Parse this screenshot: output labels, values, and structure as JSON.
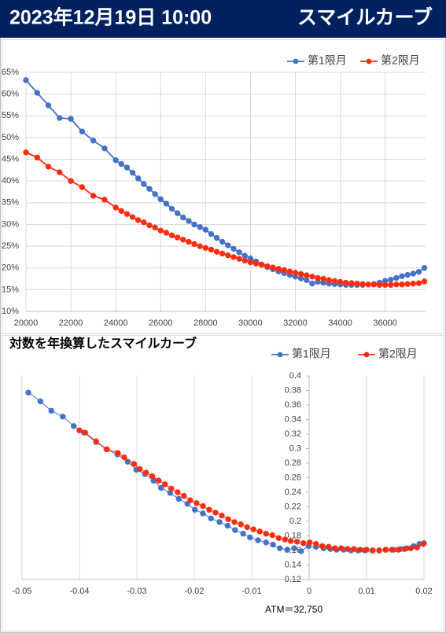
{
  "header": {
    "date": "2023年12月19日 10:00",
    "title": "スマイルカーブ"
  },
  "chart_data": [
    {
      "type": "line",
      "legend": "top-right",
      "grid": [
        "x",
        "y"
      ],
      "x": [
        20000,
        20500,
        21000,
        21500,
        22000,
        22500,
        23000,
        23500,
        24000,
        24250,
        24500,
        24750,
        25000,
        25250,
        25500,
        25750,
        26000,
        26250,
        26500,
        26750,
        27000,
        27250,
        27500,
        27750,
        28000,
        28250,
        28500,
        28750,
        29000,
        29250,
        29500,
        29750,
        30000,
        30250,
        30500,
        30750,
        31000,
        31250,
        31500,
        31750,
        32000,
        32250,
        32500,
        32750,
        33000,
        33250,
        33500,
        33750,
        34000,
        34250,
        34500,
        34750,
        35000,
        35250,
        35500,
        35750,
        36000,
        36250,
        36500,
        36750,
        37000,
        37250,
        37500,
        37750
      ],
      "xlim": [
        20000,
        37800
      ],
      "xticks": [
        20000,
        22000,
        24000,
        26000,
        28000,
        30000,
        32000,
        34000,
        36000
      ],
      "ylim": [
        10,
        65
      ],
      "yticks": [
        {
          "value": 10,
          "label": "10%"
        },
        {
          "value": 15,
          "label": "15%"
        },
        {
          "value": 20,
          "label": "20%"
        },
        {
          "value": 25,
          "label": "25%"
        },
        {
          "value": 30,
          "label": "30%"
        },
        {
          "value": 35,
          "label": "35%"
        },
        {
          "value": 40,
          "label": "40%"
        },
        {
          "value": 45,
          "label": "45%"
        },
        {
          "value": 50,
          "label": "50%"
        },
        {
          "value": 55,
          "label": "55%"
        },
        {
          "value": 60,
          "label": "60%"
        },
        {
          "value": 65,
          "label": "65%"
        }
      ],
      "series": [
        {
          "name": "第1限月",
          "color": "#4472c4",
          "values": [
            63.2,
            60.3,
            57.4,
            54.5,
            54.3,
            51.4,
            49.3,
            47.5,
            44.8,
            43.9,
            43.1,
            41.9,
            40.6,
            39.3,
            38.2,
            37.0,
            35.8,
            34.8,
            33.6,
            32.6,
            31.6,
            30.8,
            30.0,
            29.4,
            28.8,
            27.8,
            26.9,
            26.0,
            25.2,
            24.4,
            23.6,
            22.8,
            22.2,
            21.5,
            20.8,
            20.2,
            19.7,
            19.2,
            18.8,
            18.4,
            18.0,
            17.6,
            17.2,
            16.4,
            16.8,
            16.6,
            16.4,
            16.3,
            16.2,
            16.1,
            16.1,
            16.1,
            16.1,
            16.2,
            16.3,
            16.6,
            17.0,
            17.3,
            17.7,
            18.1,
            18.4,
            18.7,
            19.1,
            20.0
          ]
        },
        {
          "name": "第2限月",
          "color": "#ff2d10",
          "values": [
            46.6,
            45.4,
            43.3,
            42.0,
            40.0,
            38.6,
            36.6,
            35.7,
            33.9,
            33.1,
            32.4,
            31.7,
            31.0,
            30.5,
            29.8,
            29.3,
            28.6,
            28.1,
            27.5,
            27.0,
            26.5,
            26.0,
            25.5,
            25.0,
            24.6,
            24.2,
            23.7,
            23.3,
            22.9,
            22.5,
            22.1,
            21.7,
            21.3,
            21.0,
            20.7,
            20.4,
            20.1,
            19.8,
            19.5,
            19.2,
            18.9,
            18.6,
            18.3,
            18.0,
            17.7,
            17.5,
            17.2,
            17.0,
            16.8,
            16.6,
            16.5,
            16.4,
            16.3,
            16.2,
            16.2,
            16.1,
            16.1,
            16.1,
            16.2,
            16.2,
            16.3,
            16.4,
            16.5,
            16.9
          ]
        }
      ]
    },
    {
      "type": "scatter",
      "title": "対数を年換算したスマイルカーブ",
      "legend": "top-right",
      "grid": [
        "x"
      ],
      "annotation": "ATM＝32,750",
      "y_axis_crossing": 0,
      "xlim": [
        -0.05,
        0.02
      ],
      "xticks": [
        -0.05,
        -0.04,
        -0.03,
        -0.02,
        -0.01,
        0,
        0.01,
        0.02
      ],
      "ylim": [
        0.12,
        0.4
      ],
      "yticks": [
        0.12,
        0.14,
        0.16,
        0.18,
        0.2,
        0.22,
        0.24,
        0.26,
        0.28,
        0.3,
        0.32,
        0.34,
        0.36,
        0.38,
        0.4
      ],
      "series": [
        {
          "name": "第1限月",
          "color": "#4472c4",
          "x": [
            -0.0489,
            -0.0468,
            -0.0449,
            -0.0429,
            -0.041,
            -0.0392,
            -0.0371,
            -0.0353,
            -0.0334,
            -0.0316,
            -0.0301,
            -0.0286,
            -0.0271,
            -0.0258,
            -0.0242,
            -0.0227,
            -0.0212,
            -0.0199,
            -0.0185,
            -0.0171,
            -0.0156,
            -0.0142,
            -0.0129,
            -0.0115,
            -0.0103,
            -0.0089,
            -0.0075,
            -0.0063,
            -0.0051,
            -0.0038,
            -0.0026,
            -0.0014,
            -0.0001,
            0.0012,
            0.0025,
            0.0037,
            0.0048,
            0.006,
            0.0073,
            0.0085,
            0.0097,
            0.011,
            0.0122,
            0.0134,
            0.0147,
            0.0159,
            0.017,
            0.0182,
            0.0192,
            0.02
          ],
          "values": [
            0.377,
            0.365,
            0.352,
            0.344,
            0.331,
            0.322,
            0.309,
            0.299,
            0.292,
            0.282,
            0.271,
            0.265,
            0.256,
            0.246,
            0.239,
            0.231,
            0.224,
            0.216,
            0.211,
            0.204,
            0.199,
            0.194,
            0.188,
            0.183,
            0.178,
            0.174,
            0.171,
            0.168,
            0.163,
            0.161,
            0.163,
            0.159,
            0.166,
            0.165,
            0.163,
            0.162,
            0.161,
            0.161,
            0.16,
            0.16,
            0.16,
            0.16,
            0.16,
            0.161,
            0.161,
            0.162,
            0.163,
            0.166,
            0.169,
            0.17
          ]
        },
        {
          "name": "第2限月",
          "color": "#ff2d10",
          "x": [
            -0.04,
            -0.039,
            -0.0371,
            -0.0352,
            -0.0333,
            -0.0322,
            -0.0305,
            -0.0295,
            -0.0284,
            -0.0273,
            -0.0262,
            -0.0251,
            -0.024,
            -0.0229,
            -0.0218,
            -0.0207,
            -0.0196,
            -0.0185,
            -0.0174,
            -0.0163,
            -0.0152,
            -0.0141,
            -0.013,
            -0.0119,
            -0.0108,
            -0.0097,
            -0.0086,
            -0.0075,
            -0.0064,
            -0.0053,
            -0.0042,
            -0.0032,
            -0.0021,
            -0.001,
            0.0001,
            0.0012,
            0.0023,
            0.0034,
            0.0045,
            0.0056,
            0.0067,
            0.0078,
            0.0089,
            0.01,
            0.0111,
            0.0122,
            0.0133,
            0.0144,
            0.0155,
            0.0166,
            0.0177,
            0.0188,
            0.0199
          ],
          "values": [
            0.325,
            0.322,
            0.31,
            0.299,
            0.294,
            0.288,
            0.279,
            0.272,
            0.267,
            0.262,
            0.256,
            0.251,
            0.245,
            0.24,
            0.235,
            0.229,
            0.225,
            0.221,
            0.216,
            0.212,
            0.208,
            0.203,
            0.199,
            0.196,
            0.192,
            0.189,
            0.186,
            0.183,
            0.181,
            0.177,
            0.175,
            0.173,
            0.172,
            0.17,
            0.171,
            0.169,
            0.166,
            0.165,
            0.163,
            0.163,
            0.162,
            0.162,
            0.161,
            0.161,
            0.16,
            0.16,
            0.161,
            0.161,
            0.161,
            0.162,
            0.163,
            0.164,
            0.169
          ]
        }
      ]
    }
  ]
}
